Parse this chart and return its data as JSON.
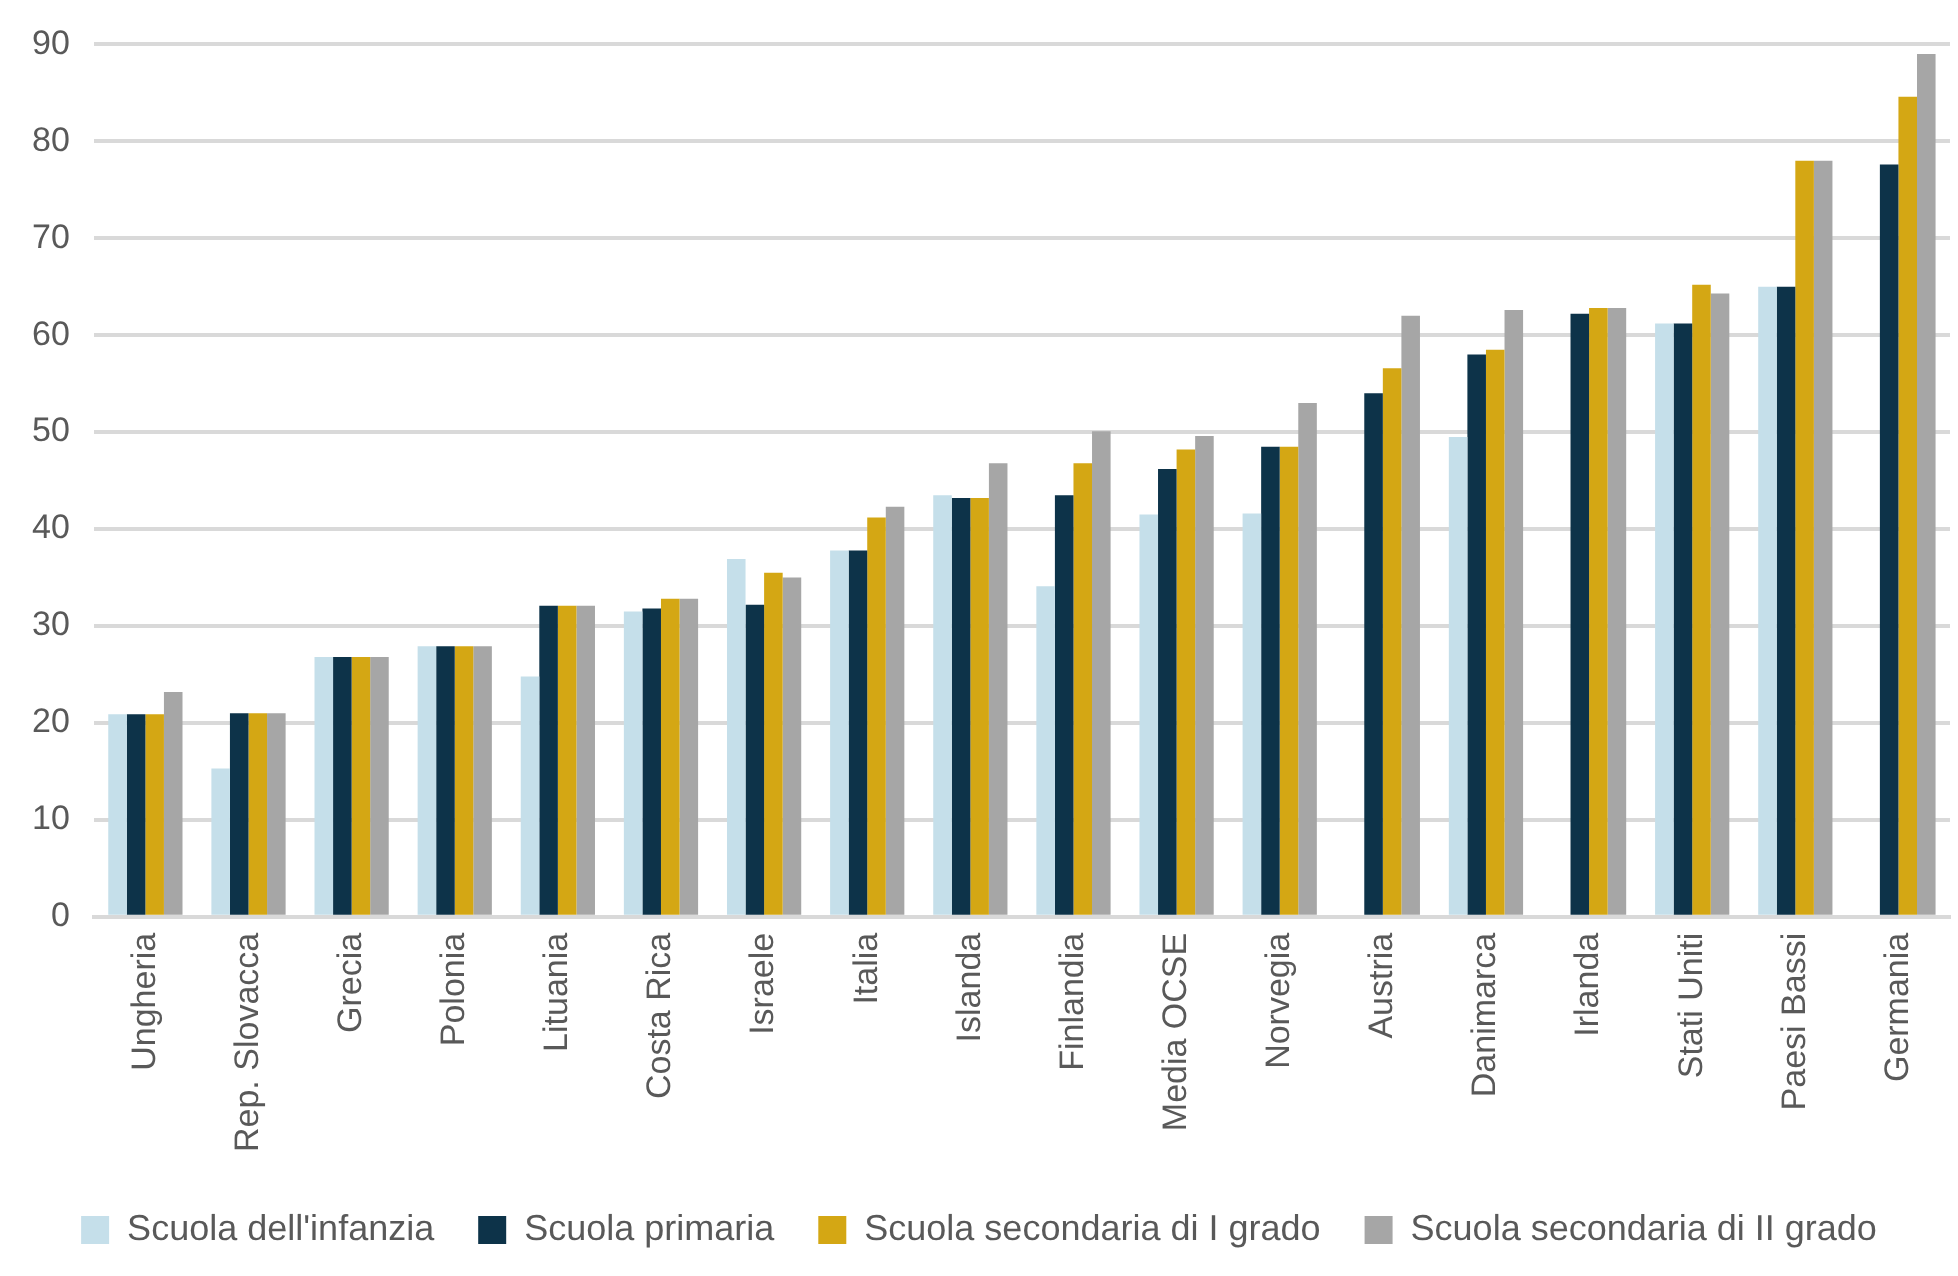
{
  "chart_data": {
    "type": "bar",
    "categories": [
      "Ungheria",
      "Rep. Slovacca",
      "Grecia",
      "Polonia",
      "Lituania",
      "Costa Rica",
      "Israele",
      "Italia",
      "Islanda",
      "Finlandia",
      "Media OCSE",
      "Norvegia",
      "Austria",
      "Danimarca",
      "Irlanda",
      "Stati Uniti",
      "Paesi Bassi",
      "Germania"
    ],
    "series": [
      {
        "name": "Scuola dell'infanzia",
        "color": "#c5dfea",
        "values": [
          20.9,
          15.3,
          26.8,
          27.9,
          24.8,
          31.5,
          36.9,
          37.8,
          43.5,
          34.1,
          41.5,
          41.6,
          null,
          49.5,
          null,
          61.2,
          65,
          null
        ]
      },
      {
        "name": "Scuola primaria",
        "color": "#0d3349",
        "values": [
          20.9,
          21,
          26.8,
          27.9,
          32.1,
          31.8,
          32.2,
          37.8,
          43.2,
          43.5,
          46.2,
          48.5,
          54,
          58,
          62.2,
          61.2,
          65,
          77.6
        ]
      },
      {
        "name": "Scuola secondaria di I grado",
        "color": "#d4a714",
        "values": [
          20.9,
          21,
          26.8,
          27.9,
          32.1,
          32.8,
          35.5,
          41.2,
          43.2,
          46.8,
          48.2,
          48.5,
          56.6,
          58.5,
          62.8,
          65.2,
          78,
          84.6
        ]
      },
      {
        "name": "Scuola secondaria di II grado",
        "color": "#a6a6a6",
        "values": [
          23.2,
          21,
          26.8,
          27.9,
          32.1,
          32.8,
          35,
          42.3,
          46.8,
          50.1,
          49.6,
          53,
          62,
          62.6,
          62.8,
          64.3,
          78,
          89
        ]
      }
    ],
    "ylim": [
      0,
      90
    ],
    "yticks": [
      0,
      10,
      20,
      30,
      40,
      50,
      60,
      70,
      80,
      90
    ],
    "grid": "y",
    "legend": "bottom"
  }
}
